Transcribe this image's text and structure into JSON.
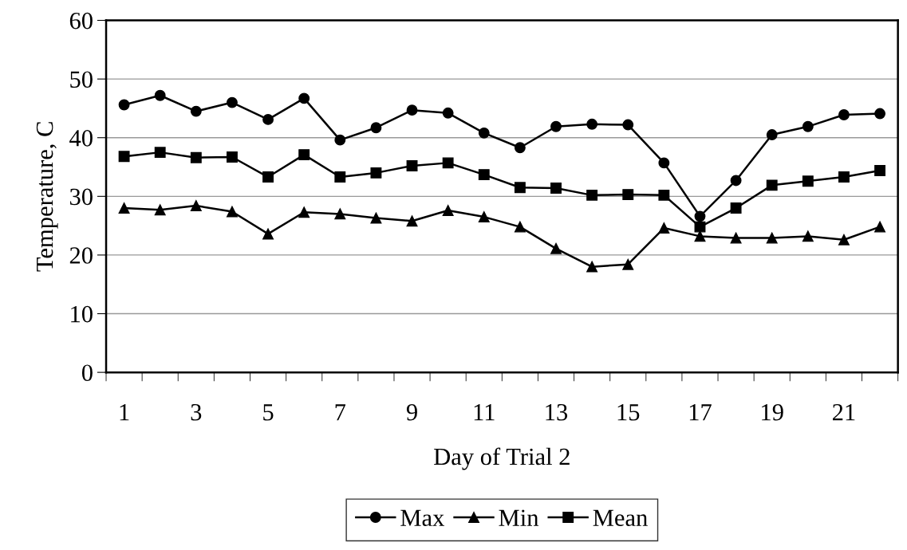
{
  "chart_data": {
    "type": "line",
    "xlabel": "Day of Trial 2",
    "ylabel": "Temperature, C",
    "categories": [
      "1",
      null,
      "3",
      null,
      "5",
      null,
      "7",
      null,
      "9",
      null,
      "11",
      null,
      "13",
      null,
      "15",
      null,
      "17",
      null,
      "19",
      null,
      "21",
      null
    ],
    "ylim": [
      0,
      60
    ],
    "yticks": [
      0,
      10,
      20,
      30,
      40,
      50,
      60
    ],
    "grid": "y",
    "legend": "bottom",
    "line_style": "solid",
    "series": [
      {
        "name": "Max",
        "color": "#000000",
        "marker": "circle",
        "values": [
          45.6,
          47.2,
          44.5,
          46.0,
          43.1,
          46.7,
          39.6,
          41.7,
          44.7,
          44.2,
          40.8,
          38.3,
          41.9,
          42.3,
          42.2,
          35.7,
          26.6,
          32.7,
          40.5,
          41.9,
          43.9,
          44.1
        ]
      },
      {
        "name": "Min",
        "color": "#000000",
        "marker": "triangle",
        "values": [
          28.0,
          27.7,
          28.4,
          27.4,
          23.6,
          27.3,
          27.0,
          26.3,
          25.8,
          27.6,
          26.5,
          24.8,
          21.1,
          18.0,
          18.4,
          24.6,
          23.2,
          22.9,
          22.9,
          23.2,
          22.6,
          24.8
        ]
      },
      {
        "name": "Mean",
        "color": "#000000",
        "marker": "square",
        "values": [
          36.8,
          37.5,
          36.6,
          36.7,
          33.3,
          37.1,
          33.3,
          34.0,
          35.2,
          35.7,
          33.7,
          31.5,
          31.4,
          30.2,
          30.3,
          30.2,
          24.8,
          28.0,
          31.9,
          32.6,
          33.3,
          34.4
        ]
      }
    ]
  }
}
